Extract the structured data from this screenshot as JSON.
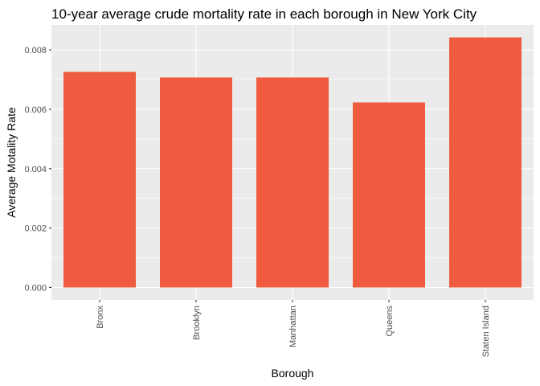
{
  "chart_data": {
    "type": "bar",
    "title": "10-year average crude mortality rate in each borough in New York City",
    "xlabel": "Borough",
    "ylabel": "Average Motality Rate",
    "categories": [
      "Bronx",
      "Brooklyn",
      "Manhattan",
      "Queens",
      "Staten Island"
    ],
    "values": [
      0.00726,
      0.00707,
      0.00707,
      0.00623,
      0.00842
    ],
    "ylim": [
      -0.00042,
      0.00884
    ],
    "yticks": [
      0.0,
      0.002,
      0.004,
      0.006,
      0.008
    ],
    "ytick_labels": [
      "0.000",
      "0.002",
      "0.004",
      "0.006",
      "0.008"
    ],
    "grid": true,
    "legend": "none",
    "bar_color": "#EF5B3F",
    "panel_color": "#EBEBEB",
    "grid_color": "#FFFFFF"
  }
}
